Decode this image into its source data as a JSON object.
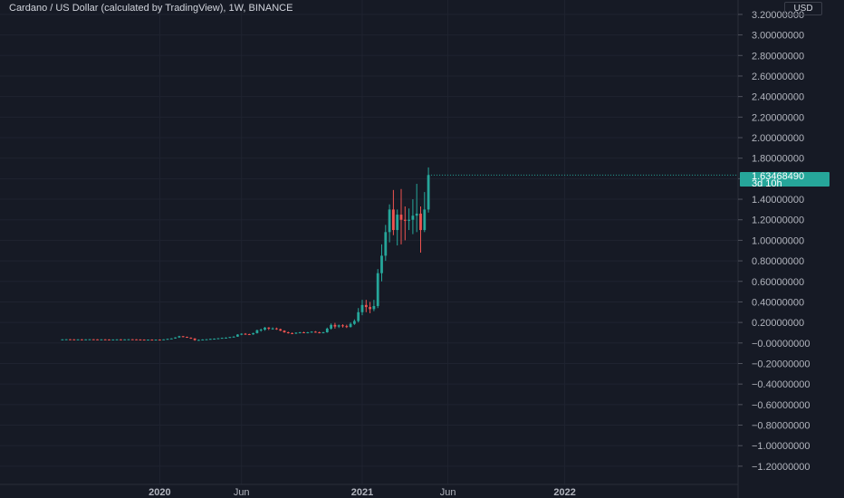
{
  "header": {
    "title": "Cardano / US Dollar (calculated by TradingView), 1W, BINANCE",
    "currency": "USD"
  },
  "last_price": {
    "price": "1.63468490",
    "countdown": "3d 10h"
  },
  "colors": {
    "background": "#161a25",
    "grid": "#1f2330",
    "up": "#26a69a",
    "down": "#ef5350",
    "text": "#b2b5be",
    "tag": "#26a69a"
  },
  "chart_data": {
    "type": "candlestick",
    "title": "Cardano / US Dollar (calculated by TradingView), 1W, BINANCE",
    "interval": "1W",
    "y_tick_labels": [
      "3.20000000",
      "3.00000000",
      "2.80000000",
      "2.60000000",
      "2.40000000",
      "2.20000000",
      "2.00000000",
      "1.80000000",
      "1.60000000",
      "1.40000000",
      "1.20000000",
      "1.00000000",
      "0.80000000",
      "0.60000000",
      "0.40000000",
      "0.20000000",
      "−0.00000000",
      "−0.20000000",
      "−0.40000000",
      "−0.60000000",
      "−0.80000000",
      "−1.00000000",
      "−1.20000000"
    ],
    "y_ticks": [
      3.2,
      3.0,
      2.8,
      2.6,
      2.4,
      2.2,
      2.0,
      1.8,
      1.6,
      1.4,
      1.2,
      1.0,
      0.8,
      0.6,
      0.4,
      0.2,
      0,
      -0.2,
      -0.4,
      -0.6,
      -0.8,
      -1.0,
      -1.2
    ],
    "ylim": [
      -1.3,
      3.3
    ],
    "x_tick_labels": [
      "2020",
      "Jun",
      "2021",
      "Jun",
      "2022"
    ],
    "x_tick_weeks": [
      -52,
      -31,
      0,
      22,
      52
    ],
    "x_tick_bold": [
      true,
      false,
      true,
      false,
      true
    ],
    "xlim_weeks": [
      -77,
      104
    ],
    "grid": true,
    "candles": [
      {
        "w": -77,
        "o": 0.034,
        "h": 0.036,
        "l": 0.032,
        "c": 0.035
      },
      {
        "w": -76,
        "o": 0.035,
        "h": 0.037,
        "l": 0.033,
        "c": 0.036
      },
      {
        "w": -75,
        "o": 0.036,
        "h": 0.038,
        "l": 0.034,
        "c": 0.035
      },
      {
        "w": -74,
        "o": 0.035,
        "h": 0.037,
        "l": 0.033,
        "c": 0.034
      },
      {
        "w": -73,
        "o": 0.034,
        "h": 0.036,
        "l": 0.032,
        "c": 0.035
      },
      {
        "w": -72,
        "o": 0.035,
        "h": 0.037,
        "l": 0.033,
        "c": 0.034
      },
      {
        "w": -71,
        "o": 0.034,
        "h": 0.036,
        "l": 0.032,
        "c": 0.035
      },
      {
        "w": -70,
        "o": 0.035,
        "h": 0.037,
        "l": 0.033,
        "c": 0.036
      },
      {
        "w": -69,
        "o": 0.036,
        "h": 0.038,
        "l": 0.034,
        "c": 0.035
      },
      {
        "w": -68,
        "o": 0.035,
        "h": 0.037,
        "l": 0.033,
        "c": 0.034
      },
      {
        "w": -67,
        "o": 0.034,
        "h": 0.036,
        "l": 0.032,
        "c": 0.035
      },
      {
        "w": -66,
        "o": 0.035,
        "h": 0.037,
        "l": 0.033,
        "c": 0.034
      },
      {
        "w": -65,
        "o": 0.034,
        "h": 0.036,
        "l": 0.032,
        "c": 0.033
      },
      {
        "w": -64,
        "o": 0.033,
        "h": 0.035,
        "l": 0.031,
        "c": 0.034
      },
      {
        "w": -63,
        "o": 0.034,
        "h": 0.036,
        "l": 0.032,
        "c": 0.035
      },
      {
        "w": -62,
        "o": 0.035,
        "h": 0.037,
        "l": 0.033,
        "c": 0.034
      },
      {
        "w": -61,
        "o": 0.034,
        "h": 0.036,
        "l": 0.032,
        "c": 0.035
      },
      {
        "w": -60,
        "o": 0.035,
        "h": 0.037,
        "l": 0.033,
        "c": 0.036
      },
      {
        "w": -59,
        "o": 0.036,
        "h": 0.038,
        "l": 0.034,
        "c": 0.035
      },
      {
        "w": -58,
        "o": 0.035,
        "h": 0.037,
        "l": 0.033,
        "c": 0.034
      },
      {
        "w": -57,
        "o": 0.034,
        "h": 0.036,
        "l": 0.032,
        "c": 0.033
      },
      {
        "w": -56,
        "o": 0.033,
        "h": 0.035,
        "l": 0.031,
        "c": 0.032
      },
      {
        "w": -55,
        "o": 0.032,
        "h": 0.034,
        "l": 0.03,
        "c": 0.033
      },
      {
        "w": -54,
        "o": 0.033,
        "h": 0.035,
        "l": 0.031,
        "c": 0.032
      },
      {
        "w": -53,
        "o": 0.032,
        "h": 0.034,
        "l": 0.03,
        "c": 0.033
      },
      {
        "w": -52,
        "o": 0.033,
        "h": 0.035,
        "l": 0.031,
        "c": 0.032
      },
      {
        "w": -51,
        "o": 0.032,
        "h": 0.036,
        "l": 0.031,
        "c": 0.035
      },
      {
        "w": -50,
        "o": 0.035,
        "h": 0.042,
        "l": 0.034,
        "c": 0.04
      },
      {
        "w": -49,
        "o": 0.04,
        "h": 0.046,
        "l": 0.038,
        "c": 0.044
      },
      {
        "w": -48,
        "o": 0.044,
        "h": 0.056,
        "l": 0.042,
        "c": 0.054
      },
      {
        "w": -47,
        "o": 0.054,
        "h": 0.07,
        "l": 0.05,
        "c": 0.066
      },
      {
        "w": -46,
        "o": 0.066,
        "h": 0.068,
        "l": 0.056,
        "c": 0.06
      },
      {
        "w": -45,
        "o": 0.06,
        "h": 0.062,
        "l": 0.05,
        "c": 0.052
      },
      {
        "w": -44,
        "o": 0.052,
        "h": 0.054,
        "l": 0.04,
        "c": 0.044
      },
      {
        "w": -43,
        "o": 0.044,
        "h": 0.046,
        "l": 0.022,
        "c": 0.028
      },
      {
        "w": -42,
        "o": 0.028,
        "h": 0.034,
        "l": 0.024,
        "c": 0.03
      },
      {
        "w": -41,
        "o": 0.03,
        "h": 0.036,
        "l": 0.028,
        "c": 0.034
      },
      {
        "w": -40,
        "o": 0.034,
        "h": 0.038,
        "l": 0.03,
        "c": 0.036
      },
      {
        "w": -39,
        "o": 0.036,
        "h": 0.042,
        "l": 0.034,
        "c": 0.04
      },
      {
        "w": -38,
        "o": 0.04,
        "h": 0.044,
        "l": 0.036,
        "c": 0.042
      },
      {
        "w": -37,
        "o": 0.042,
        "h": 0.048,
        "l": 0.04,
        "c": 0.046
      },
      {
        "w": -36,
        "o": 0.046,
        "h": 0.052,
        "l": 0.044,
        "c": 0.05
      },
      {
        "w": -35,
        "o": 0.05,
        "h": 0.056,
        "l": 0.046,
        "c": 0.052
      },
      {
        "w": -34,
        "o": 0.052,
        "h": 0.06,
        "l": 0.05,
        "c": 0.058
      },
      {
        "w": -33,
        "o": 0.058,
        "h": 0.066,
        "l": 0.054,
        "c": 0.062
      },
      {
        "w": -32,
        "o": 0.062,
        "h": 0.086,
        "l": 0.06,
        "c": 0.082
      },
      {
        "w": -31,
        "o": 0.082,
        "h": 0.094,
        "l": 0.076,
        "c": 0.09
      },
      {
        "w": -30,
        "o": 0.09,
        "h": 0.096,
        "l": 0.08,
        "c": 0.086
      },
      {
        "w": -29,
        "o": 0.086,
        "h": 0.09,
        "l": 0.078,
        "c": 0.084
      },
      {
        "w": -28,
        "o": 0.084,
        "h": 0.1,
        "l": 0.08,
        "c": 0.096
      },
      {
        "w": -27,
        "o": 0.096,
        "h": 0.13,
        "l": 0.092,
        "c": 0.124
      },
      {
        "w": -26,
        "o": 0.124,
        "h": 0.14,
        "l": 0.11,
        "c": 0.13
      },
      {
        "w": -25,
        "o": 0.13,
        "h": 0.156,
        "l": 0.12,
        "c": 0.15
      },
      {
        "w": -24,
        "o": 0.15,
        "h": 0.154,
        "l": 0.126,
        "c": 0.14
      },
      {
        "w": -23,
        "o": 0.14,
        "h": 0.152,
        "l": 0.13,
        "c": 0.142
      },
      {
        "w": -22,
        "o": 0.142,
        "h": 0.15,
        "l": 0.128,
        "c": 0.134
      },
      {
        "w": -21,
        "o": 0.134,
        "h": 0.14,
        "l": 0.116,
        "c": 0.12
      },
      {
        "w": -20,
        "o": 0.12,
        "h": 0.124,
        "l": 0.1,
        "c": 0.104
      },
      {
        "w": -19,
        "o": 0.104,
        "h": 0.11,
        "l": 0.092,
        "c": 0.096
      },
      {
        "w": -18,
        "o": 0.096,
        "h": 0.102,
        "l": 0.086,
        "c": 0.092
      },
      {
        "w": -17,
        "o": 0.092,
        "h": 0.104,
        "l": 0.088,
        "c": 0.1
      },
      {
        "w": -16,
        "o": 0.1,
        "h": 0.108,
        "l": 0.094,
        "c": 0.104
      },
      {
        "w": -15,
        "o": 0.104,
        "h": 0.11,
        "l": 0.096,
        "c": 0.1
      },
      {
        "w": -14,
        "o": 0.1,
        "h": 0.108,
        "l": 0.094,
        "c": 0.104
      },
      {
        "w": -13,
        "o": 0.104,
        "h": 0.114,
        "l": 0.1,
        "c": 0.11
      },
      {
        "w": -12,
        "o": 0.11,
        "h": 0.116,
        "l": 0.1,
        "c": 0.104
      },
      {
        "w": -11,
        "o": 0.104,
        "h": 0.11,
        "l": 0.094,
        "c": 0.098
      },
      {
        "w": -10,
        "o": 0.098,
        "h": 0.108,
        "l": 0.094,
        "c": 0.104
      },
      {
        "w": -9,
        "o": 0.104,
        "h": 0.15,
        "l": 0.1,
        "c": 0.14
      },
      {
        "w": -8,
        "o": 0.14,
        "h": 0.19,
        "l": 0.13,
        "c": 0.176
      },
      {
        "w": -7,
        "o": 0.176,
        "h": 0.196,
        "l": 0.14,
        "c": 0.16
      },
      {
        "w": -6,
        "o": 0.16,
        "h": 0.18,
        "l": 0.146,
        "c": 0.172
      },
      {
        "w": -5,
        "o": 0.172,
        "h": 0.182,
        "l": 0.15,
        "c": 0.164
      },
      {
        "w": -4,
        "o": 0.164,
        "h": 0.178,
        "l": 0.146,
        "c": 0.156
      },
      {
        "w": -3,
        "o": 0.156,
        "h": 0.2,
        "l": 0.15,
        "c": 0.186
      },
      {
        "w": -2,
        "o": 0.186,
        "h": 0.23,
        "l": 0.176,
        "c": 0.214
      },
      {
        "w": -1,
        "o": 0.214,
        "h": 0.34,
        "l": 0.2,
        "c": 0.3
      },
      {
        "w": 0,
        "o": 0.3,
        "h": 0.42,
        "l": 0.27,
        "c": 0.37
      },
      {
        "w": 1,
        "o": 0.37,
        "h": 0.42,
        "l": 0.3,
        "c": 0.35
      },
      {
        "w": 2,
        "o": 0.35,
        "h": 0.4,
        "l": 0.29,
        "c": 0.33
      },
      {
        "w": 3,
        "o": 0.33,
        "h": 0.42,
        "l": 0.31,
        "c": 0.36
      },
      {
        "w": 4,
        "o": 0.36,
        "h": 0.72,
        "l": 0.34,
        "c": 0.68
      },
      {
        "w": 5,
        "o": 0.68,
        "h": 0.96,
        "l": 0.6,
        "c": 0.85
      },
      {
        "w": 6,
        "o": 0.85,
        "h": 1.15,
        "l": 0.8,
        "c": 1.08
      },
      {
        "w": 7,
        "o": 1.08,
        "h": 1.35,
        "l": 0.98,
        "c": 1.3
      },
      {
        "w": 8,
        "o": 1.3,
        "h": 1.49,
        "l": 1.05,
        "c": 1.1
      },
      {
        "w": 9,
        "o": 1.1,
        "h": 1.3,
        "l": 0.95,
        "c": 1.25
      },
      {
        "w": 10,
        "o": 1.25,
        "h": 1.5,
        "l": 0.96,
        "c": 1.2
      },
      {
        "w": 11,
        "o": 1.2,
        "h": 1.33,
        "l": 1.0,
        "c": 1.19
      },
      {
        "w": 12,
        "o": 1.19,
        "h": 1.31,
        "l": 1.1,
        "c": 1.2
      },
      {
        "w": 13,
        "o": 1.2,
        "h": 1.4,
        "l": 1.06,
        "c": 1.24
      },
      {
        "w": 14,
        "o": 1.24,
        "h": 1.55,
        "l": 1.08,
        "c": 1.26
      },
      {
        "w": 15,
        "o": 1.26,
        "h": 1.33,
        "l": 0.88,
        "c": 1.1
      },
      {
        "w": 16,
        "o": 1.1,
        "h": 1.47,
        "l": 1.08,
        "c": 1.3
      },
      {
        "w": 17,
        "o": 1.3,
        "h": 1.71,
        "l": 1.27,
        "c": 1.635
      }
    ]
  }
}
